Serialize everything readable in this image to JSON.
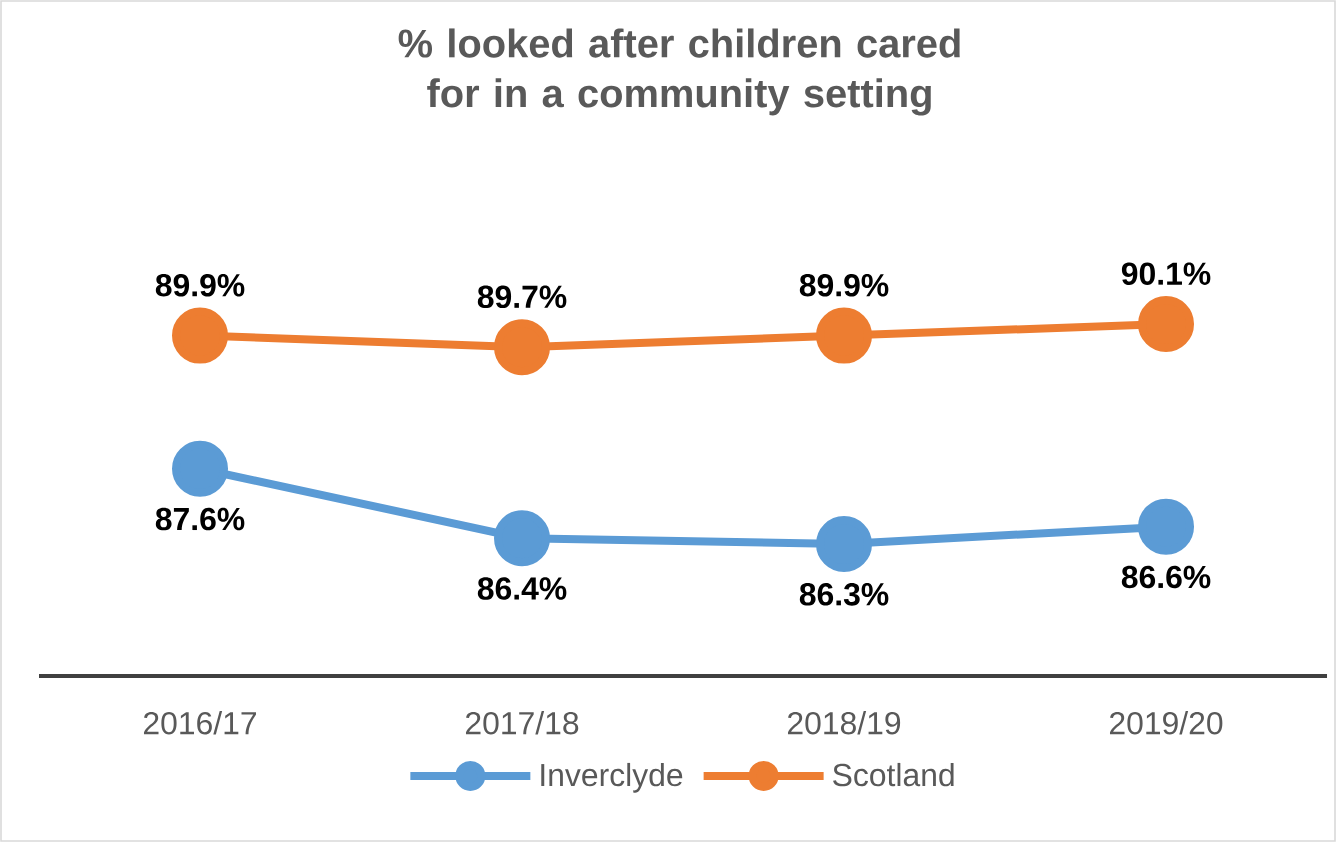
{
  "chart_data": {
    "type": "line",
    "title": "% looked after children cared for in a community setting",
    "categories": [
      "2016/17",
      "2017/18",
      "2018/19",
      "2019/20"
    ],
    "series": [
      {
        "name": "Inverclyde",
        "color": "#5b9bd5",
        "values": [
          87.6,
          86.4,
          86.3,
          86.6
        ],
        "value_labels": [
          "87.6%",
          "86.4%",
          "86.3%",
          "86.6%"
        ]
      },
      {
        "name": "Scotland",
        "color": "#ed7d31",
        "values": [
          89.9,
          89.7,
          89.9,
          90.1
        ],
        "value_labels": [
          "89.9%",
          "89.7%",
          "89.9%",
          "90.1%"
        ]
      }
    ],
    "tick_labels": "x",
    "legend": "bottom",
    "marker": "circle",
    "line_style": "solid"
  }
}
